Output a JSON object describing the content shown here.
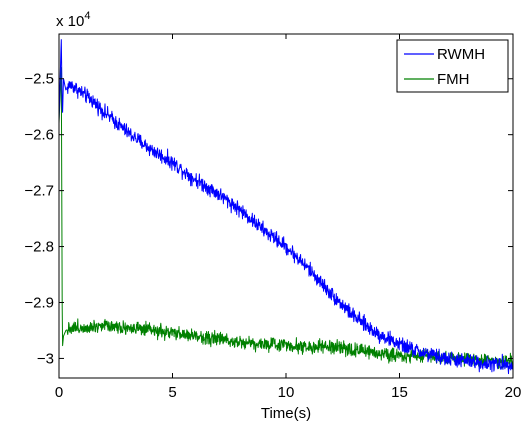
{
  "chart_data": {
    "type": "line",
    "title": "",
    "xlabel": "Time(s)",
    "ylabel": "",
    "y_multiplier_label": "x 10",
    "y_multiplier_exponent": "4",
    "xlim": [
      0,
      20
    ],
    "ylim": [
      -30350,
      -24200
    ],
    "x_ticks": [
      0,
      5,
      10,
      15,
      20
    ],
    "x_tick_labels": [
      "0",
      "5",
      "10",
      "15",
      "20"
    ],
    "y_ticks": [
      -25000,
      -26000,
      -27000,
      -28000,
      -29000,
      -30000
    ],
    "y_tick_labels": [
      "−2.5",
      "−2.6",
      "−2.7",
      "−2.8",
      "−2.9",
      "−3"
    ],
    "grid": false,
    "legend_position": "top-right",
    "series": [
      {
        "name": "RWMH",
        "color": "#0000ff",
        "x": [
          0,
          0.1,
          0.15,
          0.2,
          0.3,
          0.5,
          1,
          1.5,
          2,
          3,
          4,
          5,
          6,
          7,
          8,
          9,
          10,
          11,
          12,
          13,
          14,
          15,
          16,
          17,
          18,
          19,
          20
        ],
        "y": [
          -25750,
          -24300,
          -25700,
          -25000,
          -25200,
          -25100,
          -25250,
          -25400,
          -25600,
          -25950,
          -26250,
          -26500,
          -26800,
          -27050,
          -27350,
          -27700,
          -28000,
          -28400,
          -28850,
          -29250,
          -29550,
          -29750,
          -29900,
          -30000,
          -30050,
          -30100,
          -30100
        ],
        "noise": 130
      },
      {
        "name": "FMH",
        "color": "#008000",
        "x": [
          0,
          0.1,
          0.15,
          0.2,
          0.3,
          0.5,
          1,
          2,
          3,
          4,
          5,
          6,
          7,
          8,
          9,
          10,
          11,
          12,
          13,
          14,
          15,
          16,
          17,
          18,
          19,
          20
        ],
        "y": [
          -25800,
          -24800,
          -29800,
          -29600,
          -29500,
          -29450,
          -29450,
          -29400,
          -29450,
          -29500,
          -29550,
          -29600,
          -29650,
          -29700,
          -29750,
          -29750,
          -29800,
          -29800,
          -29850,
          -29900,
          -29950,
          -29950,
          -30000,
          -30000,
          -30050,
          -30050
        ],
        "noise": 120
      }
    ]
  }
}
